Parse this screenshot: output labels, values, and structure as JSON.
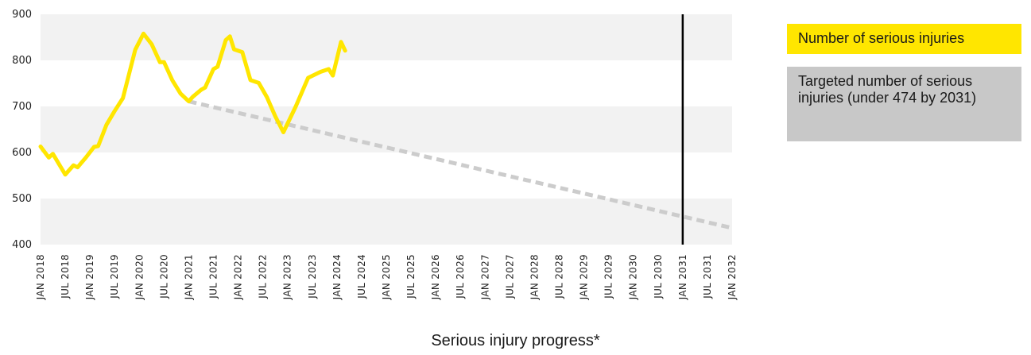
{
  "chart_data": {
    "type": "line",
    "title": "",
    "xlabel": "",
    "ylabel": "",
    "ylim": [
      400,
      900
    ],
    "yticks": [
      400,
      500,
      600,
      700,
      800,
      900
    ],
    "x_tick_labels": [
      "JAN 2018",
      "JUL 2018",
      "JAN 2019",
      "JUL 2019",
      "JAN 2020",
      "JUL 2020",
      "JAN 2021",
      "JUL 2021",
      "JAN 2022",
      "JUL 2022",
      "JAN 2023",
      "JUL 2023",
      "JAN 2024",
      "JUL 2024",
      "JAN 2025",
      "JUL 2025",
      "JAN 2026",
      "JUL 2026",
      "JAN 2027",
      "JUL 2027",
      "JAN 2028",
      "JUL 2028",
      "JAN 2029",
      "JUL 2029",
      "JAN 2030",
      "JUL 2030",
      "JAN 2031",
      "JUL 2031",
      "JAN 2032"
    ],
    "xlim": [
      "2018-01",
      "2032-01"
    ],
    "grid": "alternating horizontal bands",
    "series": [
      {
        "name": "Number of serious injuries",
        "color": "#FFE600",
        "style": "solid",
        "points": [
          [
            "2018-01",
            613
          ],
          [
            "2018-03",
            589
          ],
          [
            "2018-04",
            597
          ],
          [
            "2018-06",
            567
          ],
          [
            "2018-07",
            552
          ],
          [
            "2018-09",
            572
          ],
          [
            "2018-10",
            568
          ],
          [
            "2018-12",
            589
          ],
          [
            "2019-02",
            612
          ],
          [
            "2019-03",
            614
          ],
          [
            "2019-05",
            660
          ],
          [
            "2019-07",
            690
          ],
          [
            "2019-09",
            718
          ],
          [
            "2019-12",
            823
          ],
          [
            "2020-02",
            858
          ],
          [
            "2020-04",
            835
          ],
          [
            "2020-06",
            796
          ],
          [
            "2020-07",
            796
          ],
          [
            "2020-09",
            757
          ],
          [
            "2020-11",
            728
          ],
          [
            "2021-01",
            711
          ],
          [
            "2021-02",
            721
          ],
          [
            "2021-04",
            736
          ],
          [
            "2021-05",
            741
          ],
          [
            "2021-07",
            781
          ],
          [
            "2021-08",
            786
          ],
          [
            "2021-10",
            844
          ],
          [
            "2021-11",
            852
          ],
          [
            "2021-12",
            824
          ],
          [
            "2022-02",
            818
          ],
          [
            "2022-04",
            757
          ],
          [
            "2022-06",
            751
          ],
          [
            "2022-08",
            720
          ],
          [
            "2022-10",
            679
          ],
          [
            "2022-12",
            644
          ],
          [
            "2023-03",
            700
          ],
          [
            "2023-06",
            762
          ],
          [
            "2023-09",
            775
          ],
          [
            "2023-11",
            781
          ],
          [
            "2023-12",
            767
          ],
          [
            "2024-02",
            840
          ],
          [
            "2024-03",
            821
          ]
        ]
      },
      {
        "name": "Targeted number of serious injuries (under 474 by 2031)",
        "color": "#CCCCCC",
        "style": "dashed",
        "points": [
          [
            "2021-01",
            711
          ],
          [
            "2032-01",
            436
          ]
        ]
      }
    ],
    "reference_line": {
      "x": "2031-01",
      "color": "#000000"
    },
    "legend_placement": "right"
  },
  "legend": {
    "actual": {
      "label": "Number of serious injuries",
      "color": "#FFE600"
    },
    "target": {
      "label": "Targeted number of serious injuries (under 474 by 2031)",
      "color": "#C8C8C8"
    }
  },
  "footer": {
    "caption": "Serious injury progress*"
  }
}
